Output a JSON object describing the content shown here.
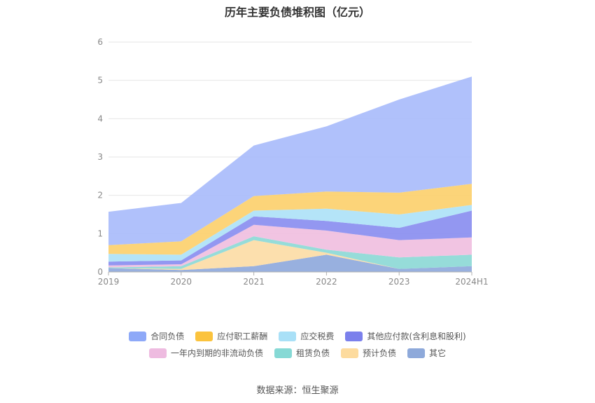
{
  "source_label": "数据来源：恒生聚源",
  "chart_data": {
    "type": "area",
    "stacked": true,
    "title": "历年主要负债堆积图（亿元）",
    "xlabel": "",
    "ylabel": "",
    "categories": [
      "2019",
      "2020",
      "2021",
      "2022",
      "2023",
      "2024H1"
    ],
    "ylim": [
      0,
      6
    ],
    "yticks": [
      "0",
      "1",
      "2",
      "3",
      "4",
      "5",
      "6"
    ],
    "grid": true,
    "legend_position": "bottom",
    "series": [
      {
        "name": "其它",
        "color": "#8fa9dc",
        "values": [
          0.1,
          0.05,
          0.15,
          0.45,
          0.08,
          0.15
        ]
      },
      {
        "name": "预计负债",
        "color": "#fcdca6",
        "values": [
          0,
          0.03,
          0.68,
          0.05,
          0,
          0
        ]
      },
      {
        "name": "租赁负债",
        "color": "#8dd9d6",
        "values": [
          0.02,
          0.07,
          0.1,
          0.08,
          0.3,
          0.3
        ]
      },
      {
        "name": "一年内到期的非流动负债",
        "color": "#f0bfe0",
        "values": [
          0.05,
          0.05,
          0.3,
          0.5,
          0.45,
          0.45
        ]
      },
      {
        "name": "其他应付款(含利息和股利)",
        "color": "#8a8ef0",
        "values": [
          0.1,
          0.1,
          0.22,
          0.25,
          0.32,
          0.7
        ]
      },
      {
        "name": "应交税费",
        "color": "#aee2f7",
        "values": [
          0.2,
          0.15,
          0.15,
          0.32,
          0.35,
          0.15
        ]
      },
      {
        "name": "应付职工薪酬",
        "color": "#fcd06e",
        "values": [
          0.23,
          0.35,
          0.38,
          0.45,
          0.57,
          0.55
        ]
      },
      {
        "name": "合同负债",
        "color": "#a9bcfb",
        "values": [
          0.87,
          1.0,
          1.32,
          1.7,
          2.43,
          2.8
        ]
      }
    ],
    "legend_rows": [
      [
        {
          "name": "合同负债",
          "color": "#8ea9f8"
        },
        {
          "name": "应付职工薪酬",
          "color": "#fbc33d"
        },
        {
          "name": "应交税费",
          "color": "#a9e0f7"
        },
        {
          "name": "其他应付款(含利息和股利)",
          "color": "#7b80ec"
        }
      ],
      [
        {
          "name": "一年内到期的非流动负债",
          "color": "#eebbe0"
        },
        {
          "name": "租赁负债",
          "color": "#86d9d5"
        },
        {
          "name": "预计负债",
          "color": "#fddb9e"
        },
        {
          "name": "其它",
          "color": "#8ea9da"
        }
      ]
    ]
  }
}
